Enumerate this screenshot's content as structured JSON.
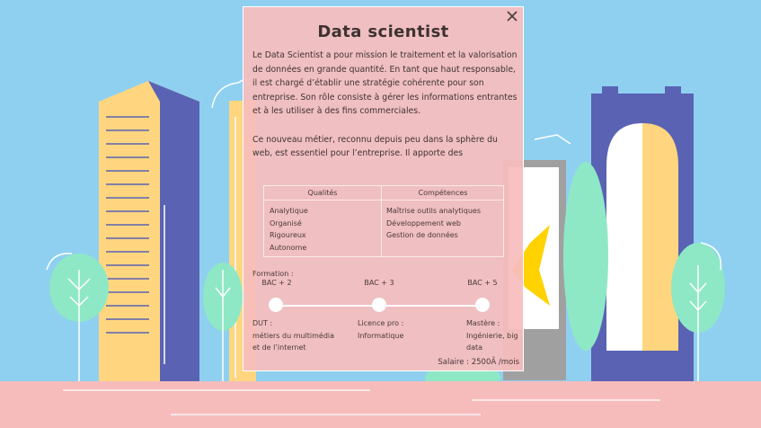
{
  "scene": {
    "colors": {
      "sky": "#8fd0f0",
      "ground": "#f6bcbc",
      "tower_yellow": "#ffd67f",
      "tower_blue": "#5a62b4",
      "tree": "#8ee8c6"
    }
  },
  "modal": {
    "title": "Data scientist",
    "close_icon": "close-icon",
    "description": [
      "Le Data Scientist a pour mission le traitement et la valorisation de données en grande quantité. En tant que haut responsable, il est chargé d’établir une stratégie cohérente pour son entreprise. Son rôle consiste à gérer les informations entrantes et à les utiliser à des fins commerciales.",
      "Ce nouveau métier, reconnu depuis peu dans la sphère du web, est essentiel pour l’entreprise. Il apporte des"
    ],
    "qualities": {
      "header": "Qualités",
      "items": [
        "Analytique",
        "Organisé",
        "Rigoureux",
        "Autonome"
      ]
    },
    "skills": {
      "header": "Compétences",
      "items": [
        "Maîtrise outils analytiques",
        "Développement web",
        "Gestion de données"
      ]
    },
    "formation_label": "Formation :",
    "timeline": [
      {
        "level": "BAC + 2",
        "school_lines": [
          "DUT :",
          "métiers du multimédia",
          "et de l’internet"
        ]
      },
      {
        "level": "BAC + 3",
        "school_lines": [
          "Licence pro :",
          "Informatique"
        ]
      },
      {
        "level": "BAC + 5",
        "school_lines": [
          "Mastère :",
          "Ingénierie, big",
          "data"
        ]
      }
    ],
    "salary": "Salaire : 2500Ã /mois"
  }
}
